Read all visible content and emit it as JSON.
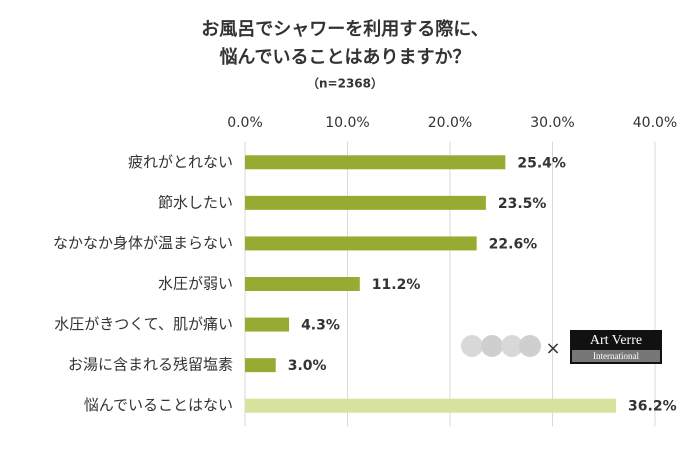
{
  "chart_data": {
    "type": "bar",
    "orientation": "horizontal",
    "title": [
      "お風呂でシャワーを利用する際に、",
      "悩んでいることはありますか？"
    ],
    "subtitle": "（n=2368）",
    "categories": [
      "疲れがとれない",
      "節水したい",
      "なかなか身体が温まらない",
      "水圧が弱い",
      "水圧がきつくて、肌が痛い",
      "お湯に含まれる残留塩素",
      "悩んでいることはない"
    ],
    "values": [
      25.4,
      23.5,
      22.6,
      11.2,
      4.3,
      3.0,
      36.2
    ],
    "value_labels": [
      "25.4%",
      "23.5%",
      "22.6%",
      "11.2%",
      "4.3%",
      "3.0%",
      "36.2%"
    ],
    "colors": [
      "#97ab33",
      "#97ab33",
      "#97ab33",
      "#97ab33",
      "#97ab33",
      "#97ab33",
      "#d7e29d"
    ],
    "xlim": [
      0,
      40
    ],
    "xticks": [
      {
        "value": 0,
        "label": "0.0%"
      },
      {
        "value": 10,
        "label": "10.0%"
      },
      {
        "value": 20,
        "label": "20.0%"
      },
      {
        "value": 30,
        "label": "30.0%"
      },
      {
        "value": 40,
        "label": "40.0%"
      }
    ],
    "grid": true,
    "annotations": [
      "×",
      "Art Verre",
      "International"
    ]
  }
}
